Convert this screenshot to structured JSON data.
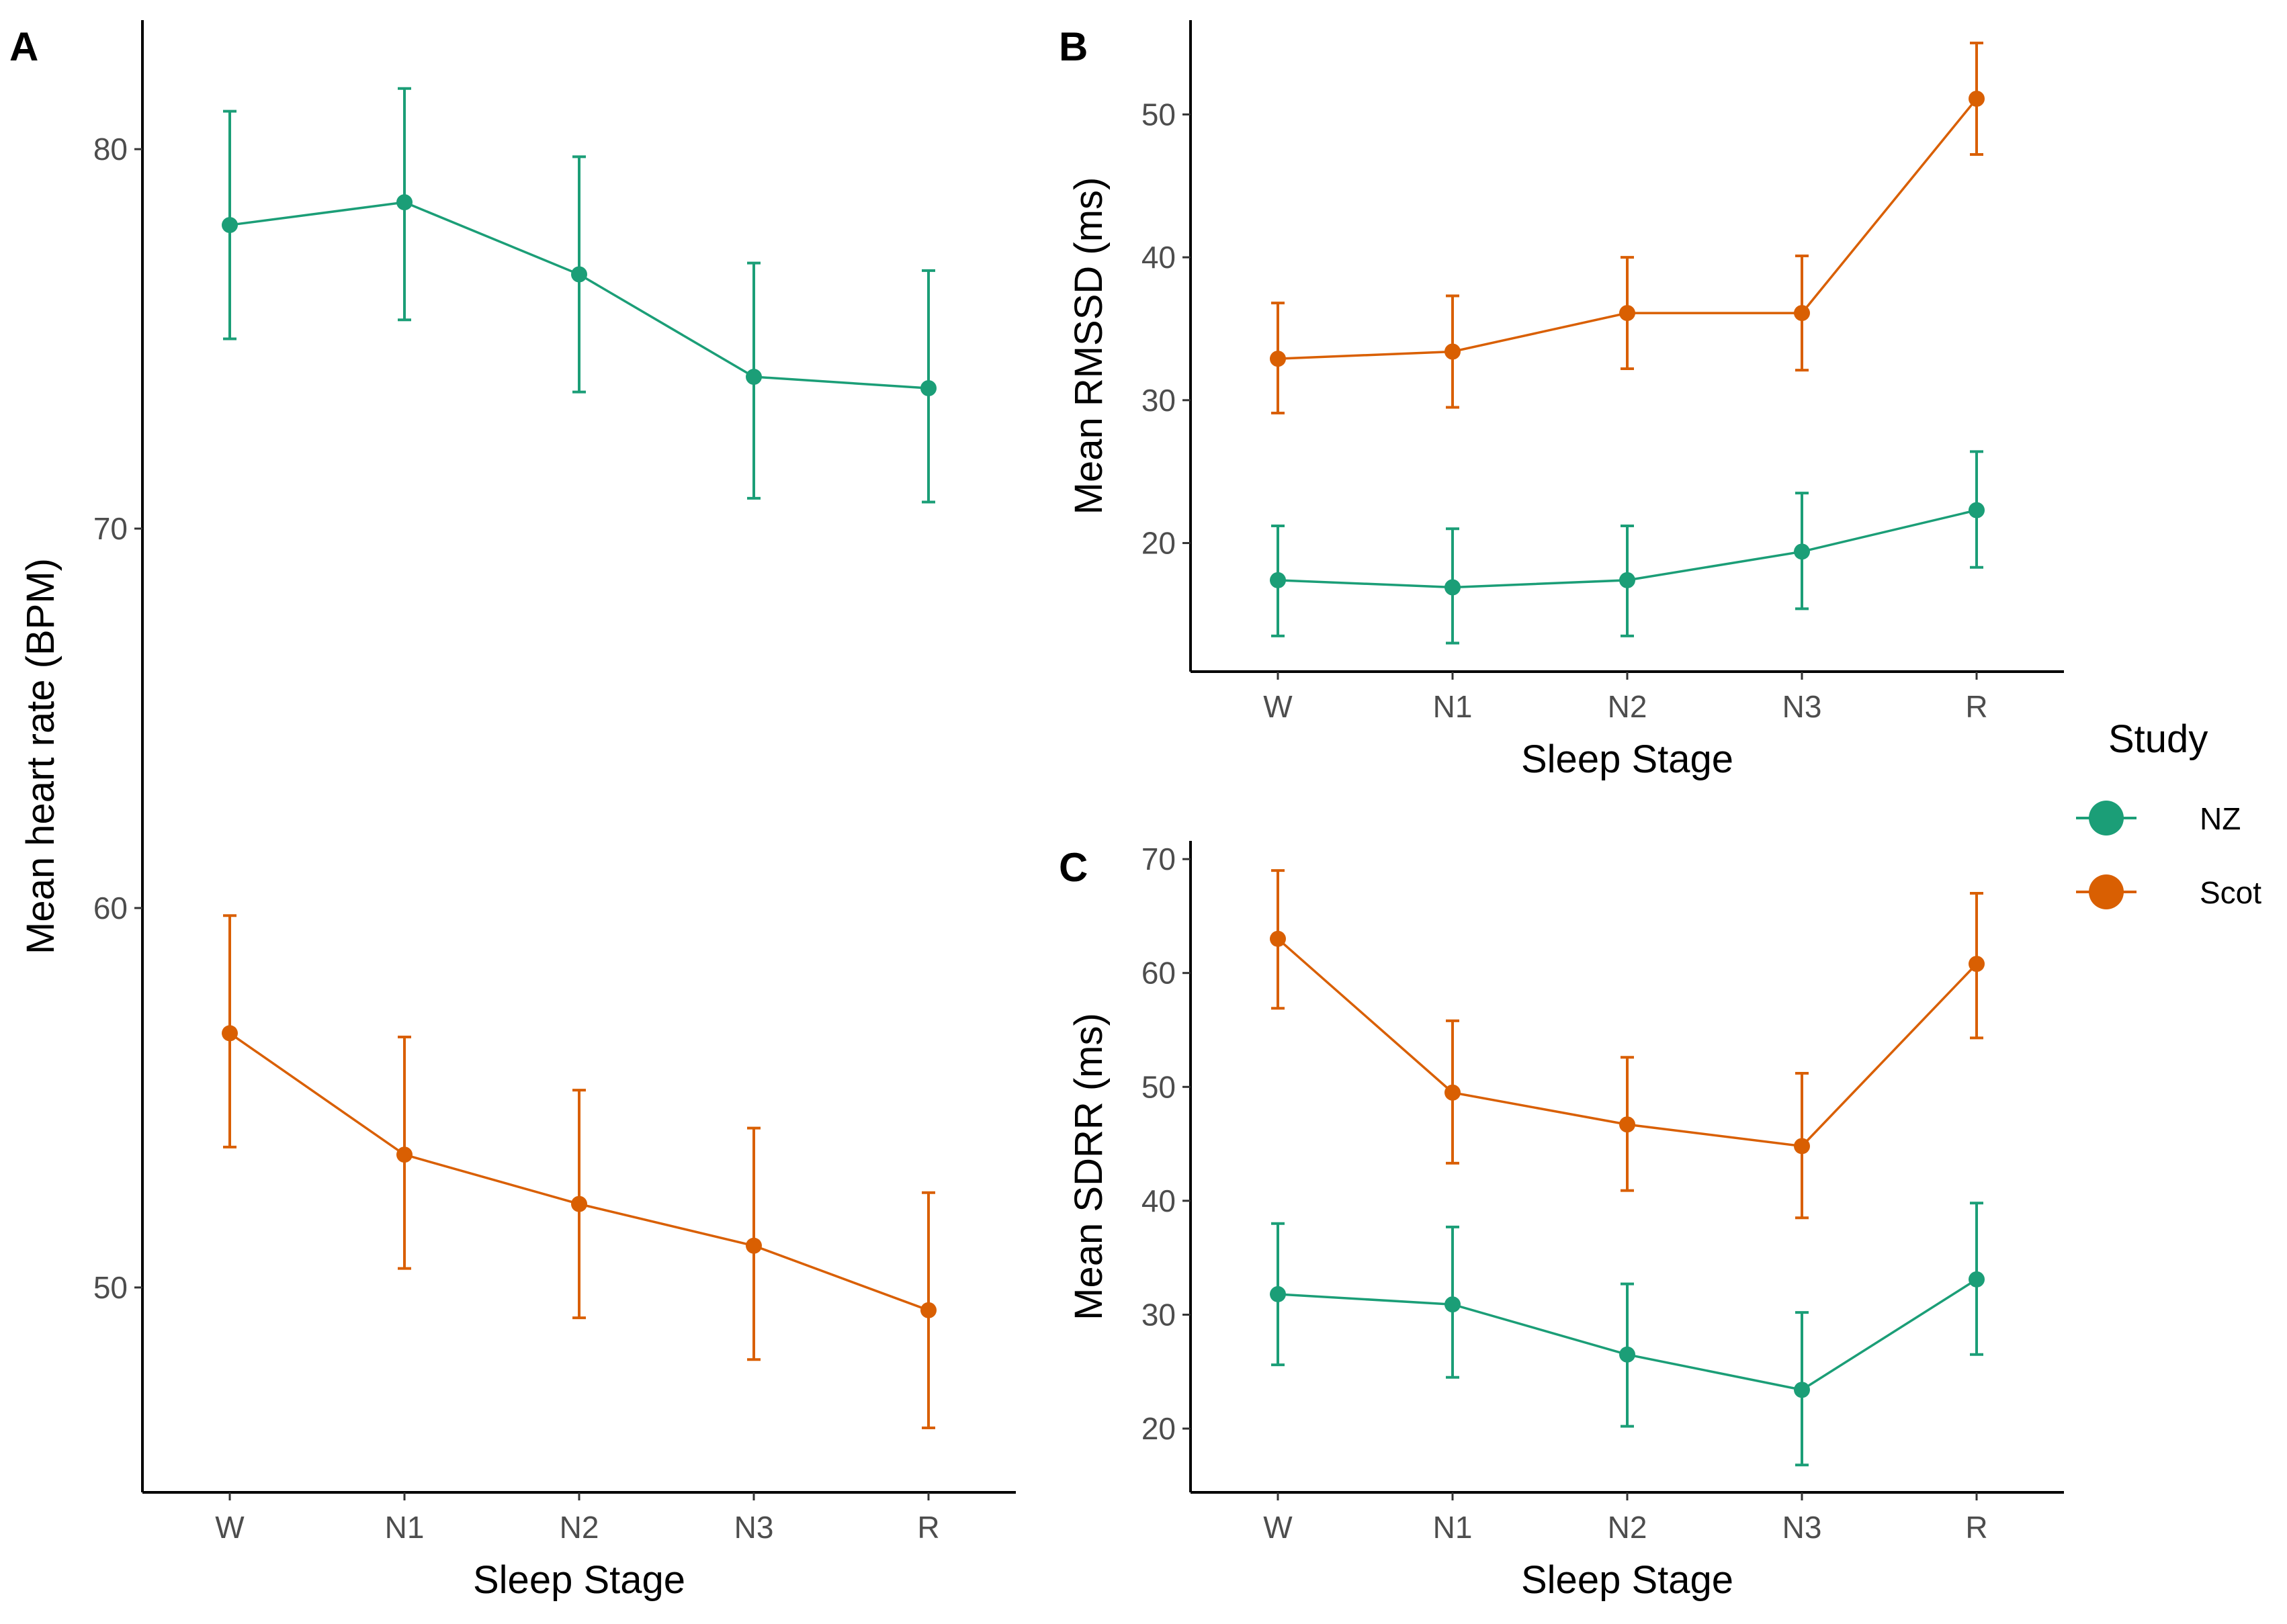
{
  "colors": {
    "NZ": "#1b9e77",
    "Scot": "#d95f02",
    "axis": "#000000",
    "tick_text": "#4d4d4d"
  },
  "legend": {
    "title": "Study",
    "items": [
      {
        "label": "NZ",
        "color": "#1b9e77"
      },
      {
        "label": "Scot",
        "color": "#d95f02"
      }
    ]
  },
  "chart_data": [
    {
      "panel": "A",
      "type": "line",
      "title": "",
      "xlabel": "Sleep Stage",
      "ylabel": "Mean heart rate (BPM)",
      "categories": [
        "W",
        "N1",
        "N2",
        "N3",
        "R"
      ],
      "ylim": [
        44.6,
        83.4
      ],
      "yticks": [
        50,
        60,
        70,
        80
      ],
      "series": [
        {
          "name": "NZ",
          "values": [
            78.0,
            78.6,
            76.7,
            74.0,
            73.7
          ],
          "lower": [
            75.0,
            75.5,
            73.6,
            70.8,
            70.7
          ],
          "upper": [
            81.0,
            81.6,
            79.8,
            77.0,
            76.8
          ]
        },
        {
          "name": "Scot",
          "values": [
            56.7,
            53.5,
            52.2,
            51.1,
            49.4
          ],
          "lower": [
            53.7,
            50.5,
            49.2,
            48.1,
            46.3
          ],
          "upper": [
            59.8,
            56.6,
            55.2,
            54.2,
            52.5
          ]
        }
      ]
    },
    {
      "panel": "B",
      "type": "line",
      "title": "",
      "xlabel": "Sleep Stage",
      "ylabel": "Mean RMSSD (ms)",
      "categories": [
        "W",
        "N1",
        "N2",
        "N3",
        "R"
      ],
      "ylim": [
        11.0,
        56.6
      ],
      "yticks": [
        20,
        30,
        40,
        50
      ],
      "series": [
        {
          "name": "NZ",
          "values": [
            17.4,
            16.9,
            17.4,
            19.4,
            22.3
          ],
          "lower": [
            13.5,
            13.0,
            13.5,
            15.4,
            18.3
          ],
          "upper": [
            21.2,
            21.0,
            21.2,
            23.5,
            26.4
          ]
        },
        {
          "name": "Scot",
          "values": [
            32.9,
            33.4,
            36.1,
            36.1,
            51.1
          ],
          "lower": [
            29.1,
            29.5,
            32.2,
            32.1,
            47.2
          ],
          "upper": [
            36.8,
            37.3,
            40.0,
            40.1,
            55.0
          ]
        }
      ]
    },
    {
      "panel": "C",
      "type": "line",
      "title": "",
      "xlabel": "Sleep Stage",
      "ylabel": "Mean SDRR (ms)",
      "categories": [
        "W",
        "N1",
        "N2",
        "N3",
        "R"
      ],
      "ylim": [
        14.4,
        71.6
      ],
      "yticks": [
        20,
        30,
        40,
        50,
        60,
        70
      ],
      "series": [
        {
          "name": "NZ",
          "values": [
            31.8,
            30.9,
            26.5,
            23.4,
            33.1
          ],
          "lower": [
            25.6,
            24.5,
            20.2,
            16.8,
            26.5
          ],
          "upper": [
            38.0,
            37.7,
            32.7,
            30.2,
            39.8
          ]
        },
        {
          "name": "Scot",
          "values": [
            63.0,
            49.5,
            46.7,
            44.8,
            60.8
          ],
          "lower": [
            56.9,
            43.3,
            40.9,
            38.5,
            54.3
          ],
          "upper": [
            69.0,
            55.8,
            52.6,
            51.2,
            67.0
          ]
        }
      ]
    }
  ]
}
